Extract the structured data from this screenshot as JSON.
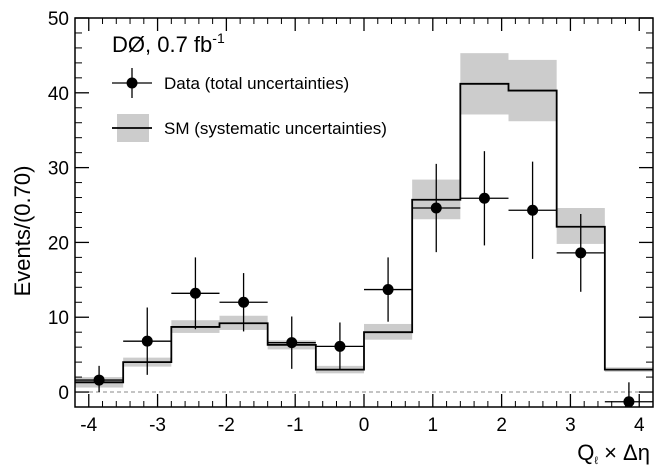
{
  "chart_data": {
    "type": "histogram",
    "experiment": "DØ, 0.7 fb",
    "lumi_superscript": "-1",
    "ylabel": "Events/(0.70)",
    "xlabel_main": "Q",
    "xlabel_sub": "ℓ",
    "xlabel_rest": " × Δη",
    "xlim": [
      -4.2,
      4.2
    ],
    "ylim": [
      -2,
      50
    ],
    "x_ticks": [
      -4,
      -3,
      -2,
      -1,
      0,
      1,
      2,
      3,
      4
    ],
    "x_tick_labels": [
      "-4",
      "-3",
      "-2",
      "-1",
      "0",
      "1",
      "2",
      "3",
      "4"
    ],
    "y_ticks": [
      0,
      10,
      20,
      30,
      40,
      50
    ],
    "y_tick_labels": [
      "0",
      "10",
      "20",
      "30",
      "40",
      "50"
    ],
    "bin_edges": [
      -4.2,
      -3.5,
      -2.8,
      -2.1,
      -1.4,
      -0.7,
      0.0,
      0.7,
      1.4,
      2.1,
      2.8,
      3.5,
      4.2
    ],
    "sm": {
      "name": "SM (systematic uncertainties)",
      "values": [
        1.3,
        4.0,
        8.7,
        9.2,
        6.3,
        3.0,
        8.0,
        25.7,
        41.2,
        40.3,
        22.1,
        3.0
      ],
      "band_low": [
        0.6,
        3.4,
        7.9,
        8.3,
        5.7,
        2.5,
        7.0,
        23.1,
        37.1,
        36.2,
        19.8,
        2.7
      ],
      "band_high": [
        2.0,
        4.6,
        9.6,
        10.2,
        6.9,
        3.5,
        9.1,
        28.4,
        45.3,
        44.4,
        24.6,
        3.3
      ]
    },
    "data": {
      "name": "Data (total uncertainties)",
      "x": [
        -3.85,
        -3.15,
        -2.45,
        -1.75,
        -1.05,
        -0.35,
        0.35,
        1.05,
        1.75,
        2.45,
        3.15,
        3.85
      ],
      "y": [
        1.6,
        6.8,
        13.2,
        12.0,
        6.6,
        6.1,
        13.7,
        24.6,
        25.9,
        24.3,
        18.6,
        -1.3
      ],
      "yerr_low": [
        1.6,
        4.5,
        4.8,
        3.9,
        3.5,
        3.2,
        4.3,
        5.9,
        6.3,
        6.5,
        5.2,
        1.1
      ],
      "yerr_high": [
        1.9,
        4.5,
        4.8,
        3.9,
        3.5,
        3.2,
        4.3,
        5.9,
        6.3,
        6.5,
        5.2,
        2.6
      ]
    },
    "zero_line": "dashed",
    "legend_position": "top-left"
  }
}
